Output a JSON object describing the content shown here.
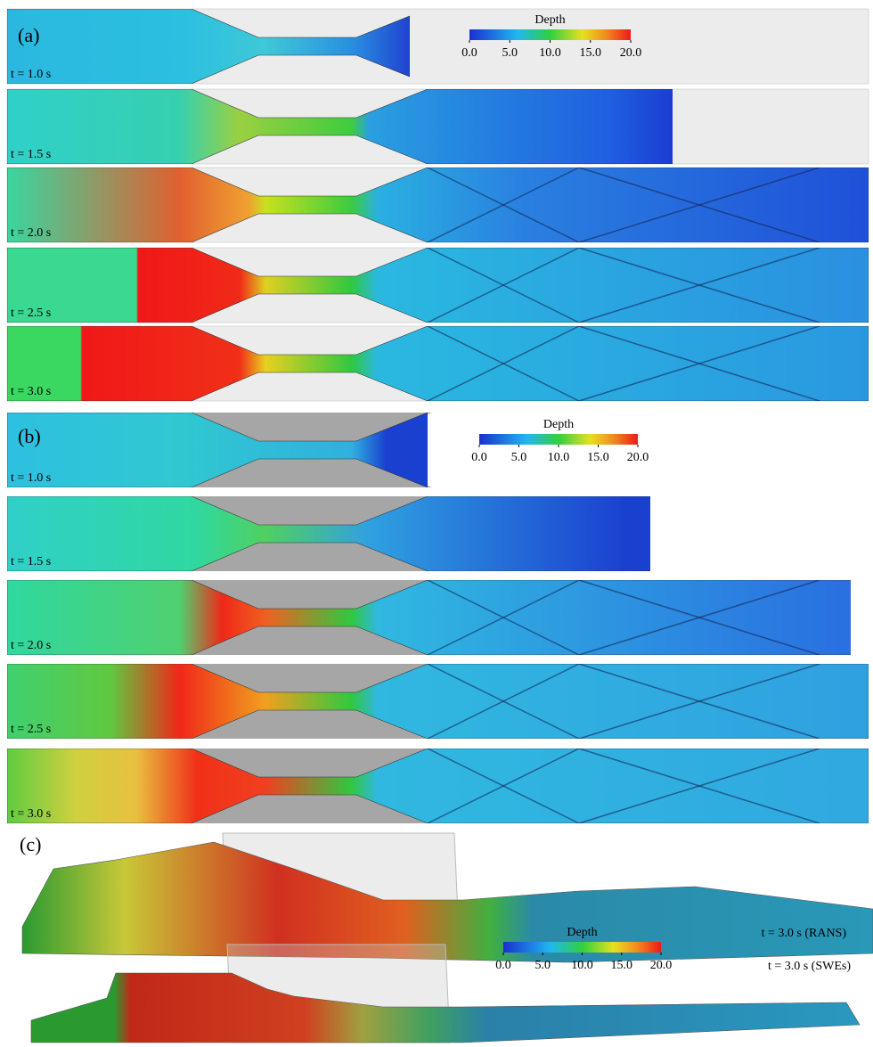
{
  "panels": [
    {
      "label": "(a)",
      "strips": [
        {
          "time": "t = 1.0 s"
        },
        {
          "time": "t = 1.5 s"
        },
        {
          "time": "t = 2.0 s"
        },
        {
          "time": "t = 2.5 s"
        },
        {
          "time": "t = 3.0 s"
        }
      ],
      "colorbar": {
        "title": "Depth",
        "range": [
          0,
          20
        ],
        "ticks": [
          {
            "value": 0,
            "label": "0.0"
          },
          {
            "value": 5,
            "label": "5.0"
          },
          {
            "value": 10,
            "label": "10.0"
          },
          {
            "value": 15,
            "label": "15.0"
          },
          {
            "value": 20,
            "label": "20.0"
          }
        ]
      }
    },
    {
      "label": "(b)",
      "strips": [
        {
          "time": "t = 1.0 s"
        },
        {
          "time": "t = 1.5 s"
        },
        {
          "time": "t = 2.0 s"
        },
        {
          "time": "t = 2.5 s"
        },
        {
          "time": "t = 3.0 s"
        }
      ],
      "colorbar": {
        "title": "Depth",
        "range": [
          0,
          20
        ],
        "ticks": [
          {
            "value": 0,
            "label": "0.0"
          },
          {
            "value": 5,
            "label": "5.0"
          },
          {
            "value": 10,
            "label": "10.0"
          },
          {
            "value": 15,
            "label": "15.0"
          },
          {
            "value": 20,
            "label": "20.0"
          }
        ]
      }
    },
    {
      "label": "(c)",
      "views": [
        {
          "time": "t = 3.0 s (RANS)"
        },
        {
          "time": "t = 3.0 s (SWEs)"
        }
      ],
      "colorbar": {
        "title": "Depth",
        "range": [
          0,
          20
        ],
        "ticks": [
          {
            "value": 0,
            "label": "0.0"
          },
          {
            "value": 5,
            "label": "5.0"
          },
          {
            "value": 10,
            "label": "10.0"
          },
          {
            "value": 15,
            "label": "15.0"
          },
          {
            "value": 20,
            "label": "20.0"
          }
        ]
      }
    }
  ]
}
